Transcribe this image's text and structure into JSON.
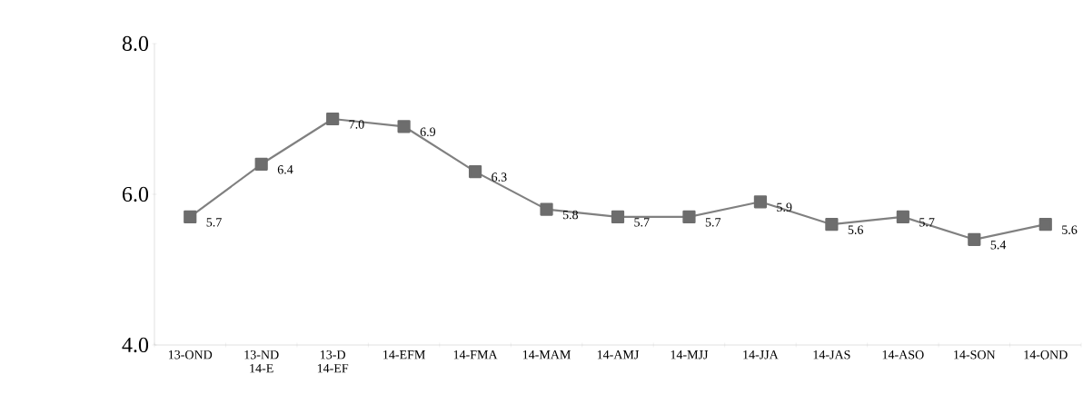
{
  "chart_data": {
    "type": "line",
    "categories": [
      "13-OND",
      "13-ND 14-E",
      "13-D 14-EF",
      "14-EFM",
      "14-FMA",
      "14-MAM",
      "14-AMJ",
      "14-MJJ",
      "14-JJA",
      "14-JAS",
      "14-ASO",
      "14-SON",
      "14-OND"
    ],
    "values": [
      5.7,
      6.4,
      7.0,
      6.9,
      6.3,
      5.8,
      5.7,
      5.7,
      5.9,
      5.6,
      5.7,
      5.4,
      5.6
    ],
    "value_labels": [
      "5.7",
      "6.4",
      "7.0",
      "6.9",
      "6.3",
      "5.8",
      "5.7",
      "5.7",
      "5.9",
      "5.6",
      "5.7",
      "5.4",
      "5.6"
    ],
    "color": "#808080",
    "marker": "square",
    "ylim": [
      4,
      8
    ],
    "yticks": [
      {
        "value": 4,
        "label": "4.0"
      },
      {
        "value": 6,
        "label": "6.0"
      },
      {
        "value": 8,
        "label": "8.0"
      }
    ]
  }
}
